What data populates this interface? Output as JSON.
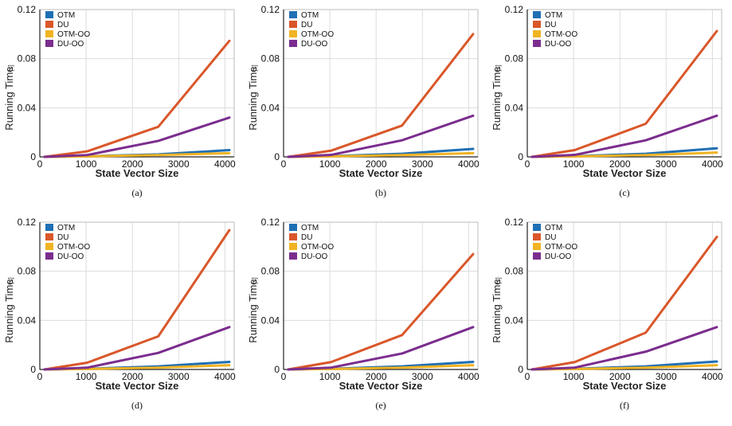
{
  "chart_data": [
    {
      "type": "line",
      "caption": "(a)",
      "xlabel": "State Vector Size",
      "ylabel": "Running Time",
      "yunit": "[s]",
      "xlim": [
        0,
        4200
      ],
      "ylim": [
        0,
        0.12
      ],
      "xticks": [
        "0",
        "1000",
        "2000",
        "3000",
        "4000"
      ],
      "yticks": [
        "0",
        "0.04",
        "0.08",
        "0.12"
      ],
      "grid": true,
      "legend": "top-left",
      "x": [
        100,
        1024,
        2560,
        4096
      ],
      "series": [
        {
          "name": "OTM",
          "color": "#1f6fb4",
          "values": [
            0,
            0.0005,
            0.002,
            0.0055
          ]
        },
        {
          "name": "DU",
          "color": "#d9572a",
          "values": [
            0,
            0.0045,
            0.0245,
            0.0945
          ]
        },
        {
          "name": "OTM-OO",
          "color": "#f0b323",
          "values": [
            0,
            0.0004,
            0.0015,
            0.003
          ]
        },
        {
          "name": "DU-OO",
          "color": "#7b2d8e",
          "values": [
            0,
            0.0015,
            0.013,
            0.032
          ]
        }
      ]
    },
    {
      "type": "line",
      "caption": "(b)",
      "xlabel": "State Vector Size",
      "ylabel": "Running Time",
      "yunit": "[s]",
      "xlim": [
        0,
        4200
      ],
      "ylim": [
        0,
        0.12
      ],
      "xticks": [
        "0",
        "1000",
        "2000",
        "3000",
        "4000"
      ],
      "yticks": [
        "0",
        "0.04",
        "0.08",
        "0.12"
      ],
      "grid": true,
      "legend": "top-left",
      "x": [
        100,
        1024,
        2560,
        4096
      ],
      "series": [
        {
          "name": "OTM",
          "color": "#1f6fb4",
          "values": [
            0,
            0.0006,
            0.0025,
            0.0065
          ]
        },
        {
          "name": "DU",
          "color": "#d9572a",
          "values": [
            0,
            0.005,
            0.0255,
            0.1
          ]
        },
        {
          "name": "OTM-OO",
          "color": "#f0b323",
          "values": [
            0,
            0.0004,
            0.0015,
            0.003
          ]
        },
        {
          "name": "DU-OO",
          "color": "#7b2d8e",
          "values": [
            0,
            0.0016,
            0.0135,
            0.0335
          ]
        }
      ]
    },
    {
      "type": "line",
      "caption": "(c)",
      "xlabel": "State Vector Size",
      "ylabel": "Running Time",
      "yunit": "[s]",
      "xlim": [
        0,
        4200
      ],
      "ylim": [
        0,
        0.12
      ],
      "xticks": [
        "0",
        "1000",
        "2000",
        "3000",
        "4000"
      ],
      "yticks": [
        "0",
        "0.04",
        "0.08",
        "0.12"
      ],
      "grid": true,
      "legend": "top-left",
      "x": [
        100,
        1024,
        2560,
        4096
      ],
      "series": [
        {
          "name": "OTM",
          "color": "#1f6fb4",
          "values": [
            0,
            0.0006,
            0.0025,
            0.007
          ]
        },
        {
          "name": "DU",
          "color": "#d9572a",
          "values": [
            0,
            0.0055,
            0.027,
            0.1025
          ]
        },
        {
          "name": "OTM-OO",
          "color": "#f0b323",
          "values": [
            0,
            0.0004,
            0.0015,
            0.0035
          ]
        },
        {
          "name": "DU-OO",
          "color": "#7b2d8e",
          "values": [
            0,
            0.0016,
            0.0135,
            0.0335
          ]
        }
      ]
    },
    {
      "type": "line",
      "caption": "(d)",
      "xlabel": "State Vector Size",
      "ylabel": "Running Time",
      "yunit": "[s]",
      "xlim": [
        0,
        4200
      ],
      "ylim": [
        0,
        0.12
      ],
      "xticks": [
        "0",
        "1000",
        "2000",
        "3000",
        "4000"
      ],
      "yticks": [
        "0",
        "0.04",
        "0.08",
        "0.12"
      ],
      "grid": true,
      "legend": "top-left",
      "x": [
        100,
        1024,
        2560,
        4096
      ],
      "series": [
        {
          "name": "OTM",
          "color": "#1f6fb4",
          "values": [
            0,
            0.0006,
            0.0025,
            0.0062
          ]
        },
        {
          "name": "DU",
          "color": "#d9572a",
          "values": [
            0,
            0.0055,
            0.027,
            0.1135
          ]
        },
        {
          "name": "OTM-OO",
          "color": "#f0b323",
          "values": [
            0,
            0.0004,
            0.0015,
            0.0035
          ]
        },
        {
          "name": "DU-OO",
          "color": "#7b2d8e",
          "values": [
            0,
            0.0015,
            0.0135,
            0.0345
          ]
        }
      ]
    },
    {
      "type": "line",
      "caption": "(e)",
      "xlabel": "State Vector Size",
      "ylabel": "Running Time",
      "yunit": "[s]",
      "xlim": [
        0,
        4200
      ],
      "ylim": [
        0,
        0.12
      ],
      "xticks": [
        "0",
        "1000",
        "2000",
        "3000",
        "4000"
      ],
      "yticks": [
        "0",
        "0.04",
        "0.08",
        "0.12"
      ],
      "grid": true,
      "legend": "top-left",
      "x": [
        100,
        1024,
        2560,
        4096
      ],
      "series": [
        {
          "name": "OTM",
          "color": "#1f6fb4",
          "values": [
            0,
            0.0006,
            0.0025,
            0.0062
          ]
        },
        {
          "name": "DU",
          "color": "#d9572a",
          "values": [
            0,
            0.006,
            0.028,
            0.094
          ]
        },
        {
          "name": "OTM-OO",
          "color": "#f0b323",
          "values": [
            0,
            0.0004,
            0.0015,
            0.0035
          ]
        },
        {
          "name": "DU-OO",
          "color": "#7b2d8e",
          "values": [
            0,
            0.0015,
            0.013,
            0.0345
          ]
        }
      ]
    },
    {
      "type": "line",
      "caption": "(f)",
      "xlabel": "State Vector Size",
      "ylabel": "Running Time",
      "yunit": "[s]",
      "xlim": [
        0,
        4200
      ],
      "ylim": [
        0,
        0.12
      ],
      "xticks": [
        "0",
        "1000",
        "2000",
        "3000",
        "4000"
      ],
      "yticks": [
        "0",
        "0.04",
        "0.08",
        "0.12"
      ],
      "grid": true,
      "legend": "top-left",
      "x": [
        100,
        1024,
        2560,
        4096
      ],
      "series": [
        {
          "name": "OTM",
          "color": "#1f6fb4",
          "values": [
            0,
            0.0006,
            0.0025,
            0.0065
          ]
        },
        {
          "name": "DU",
          "color": "#d9572a",
          "values": [
            0,
            0.006,
            0.03,
            0.108
          ]
        },
        {
          "name": "OTM-OO",
          "color": "#f0b323",
          "values": [
            0,
            0.0004,
            0.0015,
            0.0035
          ]
        },
        {
          "name": "DU-OO",
          "color": "#7b2d8e",
          "values": [
            0,
            0.0015,
            0.0145,
            0.0345
          ]
        }
      ]
    }
  ]
}
